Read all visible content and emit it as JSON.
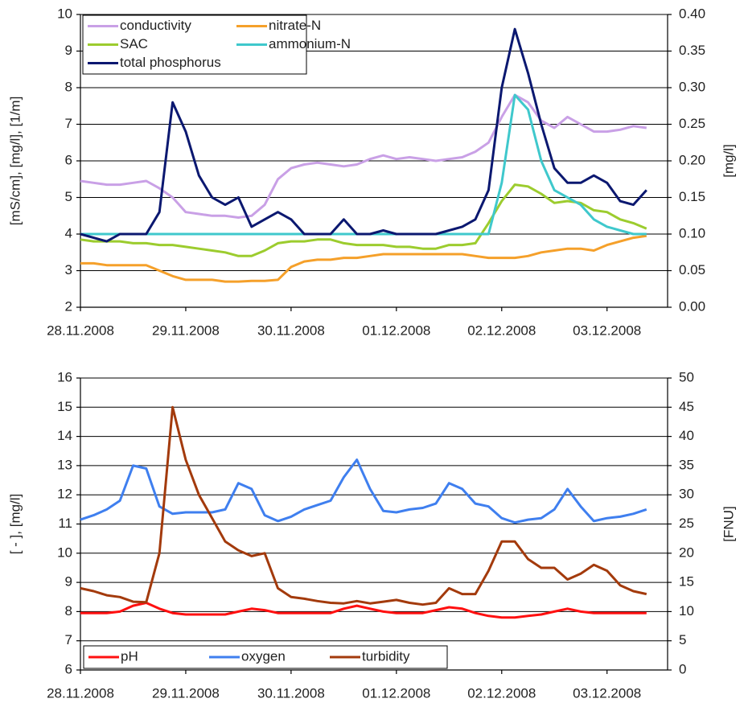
{
  "chart_data": [
    {
      "type": "line",
      "categories": [
        "28.11.2008",
        null,
        null,
        null,
        null,
        null,
        null,
        null,
        "29.11.2008",
        null,
        null,
        null,
        null,
        null,
        null,
        null,
        "30.11.2008",
        null,
        null,
        null,
        null,
        null,
        null,
        null,
        "01.12.2008",
        null,
        null,
        null,
        null,
        null,
        null,
        null,
        "02.12.2008",
        null,
        null,
        null,
        null,
        null,
        null,
        null,
        "03.12.2008",
        null,
        null,
        null
      ],
      "ylabel": "[mS/cm], [mg/l], [1/m]",
      "y2label": "[mg/l]",
      "ylim": [
        2,
        10
      ],
      "yticks": [
        2,
        3,
        4,
        5,
        6,
        7,
        8,
        9,
        10
      ],
      "y2lim": [
        0,
        0.4
      ],
      "y2ticks": [
        {
          "value": 0,
          "label": "0.00"
        },
        {
          "value": 0.05,
          "label": "0.05"
        },
        {
          "value": 0.1,
          "label": "0.10"
        },
        {
          "value": 0.15,
          "label": "0.15"
        },
        {
          "value": 0.2,
          "label": "0.20"
        },
        {
          "value": 0.25,
          "label": "0.25"
        },
        {
          "value": 0.3,
          "label": "0.30"
        },
        {
          "value": 0.35,
          "label": "0.35"
        },
        {
          "value": 0.4,
          "label": "0.40"
        }
      ],
      "grid": true,
      "legend": "upper left",
      "series": [
        {
          "name": "conductivity",
          "color": "#c9a0e6",
          "values": [
            5.45,
            5.4,
            5.35,
            5.35,
            5.4,
            5.45,
            5.25,
            5.0,
            4.6,
            4.55,
            4.5,
            4.5,
            4.45,
            4.5,
            4.8,
            5.5,
            5.8,
            5.9,
            5.95,
            5.9,
            5.85,
            5.9,
            6.05,
            6.15,
            6.05,
            6.1,
            6.05,
            6.0,
            6.05,
            6.1,
            6.25,
            6.5,
            7.2,
            7.8,
            7.6,
            7.1,
            6.9,
            7.2,
            7.0,
            6.8,
            6.8,
            6.85,
            6.95,
            6.9
          ]
        },
        {
          "name": "nitrate-N",
          "color": "#f5a02a",
          "values": [
            3.2,
            3.2,
            3.15,
            3.15,
            3.15,
            3.15,
            3.0,
            2.85,
            2.75,
            2.75,
            2.75,
            2.7,
            2.7,
            2.72,
            2.72,
            2.75,
            3.1,
            3.25,
            3.3,
            3.3,
            3.35,
            3.35,
            3.4,
            3.45,
            3.45,
            3.45,
            3.45,
            3.45,
            3.45,
            3.45,
            3.4,
            3.35,
            3.35,
            3.35,
            3.4,
            3.5,
            3.55,
            3.6,
            3.6,
            3.55,
            3.7,
            3.8,
            3.9,
            3.95
          ]
        },
        {
          "name": "SAC",
          "color": "#9ccc2e",
          "values": [
            3.85,
            3.8,
            3.8,
            3.8,
            3.75,
            3.75,
            3.7,
            3.7,
            3.65,
            3.6,
            3.55,
            3.5,
            3.4,
            3.4,
            3.55,
            3.75,
            3.8,
            3.8,
            3.85,
            3.85,
            3.75,
            3.7,
            3.7,
            3.7,
            3.65,
            3.65,
            3.6,
            3.6,
            3.7,
            3.7,
            3.75,
            4.3,
            4.9,
            5.35,
            5.3,
            5.1,
            4.85,
            4.9,
            4.85,
            4.65,
            4.6,
            4.4,
            4.3,
            4.15
          ]
        },
        {
          "name": "ammonium-N",
          "color": "#3fc8cc",
          "axis": "y2",
          "values": [
            0.1,
            0.1,
            0.1,
            0.1,
            0.1,
            0.1,
            0.1,
            0.1,
            0.1,
            0.1,
            0.1,
            0.1,
            0.1,
            0.1,
            0.1,
            0.1,
            0.1,
            0.1,
            0.1,
            0.1,
            0.1,
            0.1,
            0.1,
            0.1,
            0.1,
            0.1,
            0.1,
            0.1,
            0.1,
            0.1,
            0.1,
            0.1,
            0.17,
            0.29,
            0.27,
            0.2,
            0.16,
            0.15,
            0.14,
            0.12,
            0.11,
            0.105,
            0.1,
            0.1
          ]
        },
        {
          "name": "total phosphorus",
          "color": "#0b1870",
          "axis": "y2",
          "values": [
            0.1,
            0.095,
            0.09,
            0.1,
            0.1,
            0.1,
            0.13,
            0.28,
            0.24,
            0.18,
            0.15,
            0.14,
            0.15,
            0.11,
            0.12,
            0.13,
            0.12,
            0.1,
            0.1,
            0.1,
            0.12,
            0.1,
            0.1,
            0.105,
            0.1,
            0.1,
            0.1,
            0.1,
            0.105,
            0.11,
            0.12,
            0.16,
            0.3,
            0.38,
            0.32,
            0.25,
            0.19,
            0.17,
            0.17,
            0.18,
            0.17,
            0.145,
            0.14,
            0.16
          ]
        }
      ]
    },
    {
      "type": "line",
      "categories": [
        "28.11.2008",
        null,
        null,
        null,
        null,
        null,
        null,
        null,
        "29.11.2008",
        null,
        null,
        null,
        null,
        null,
        null,
        null,
        "30.11.2008",
        null,
        null,
        null,
        null,
        null,
        null,
        null,
        "01.12.2008",
        null,
        null,
        null,
        null,
        null,
        null,
        null,
        "02.12.2008",
        null,
        null,
        null,
        null,
        null,
        null,
        null,
        "03.12.2008",
        null,
        null,
        null
      ],
      "ylabel": "[ - ], [mg/l]",
      "y2label": "[FNU]",
      "ylim": [
        6,
        16
      ],
      "yticks": [
        6,
        7,
        8,
        9,
        10,
        11,
        12,
        13,
        14,
        15,
        16
      ],
      "y2lim": [
        0,
        50
      ],
      "y2ticks": [
        0,
        5,
        10,
        15,
        20,
        25,
        30,
        35,
        40,
        45,
        50
      ],
      "grid": true,
      "legend": "lower left",
      "series": [
        {
          "name": "pH",
          "color": "#ff1010",
          "values": [
            7.95,
            7.95,
            7.95,
            8.0,
            8.2,
            8.3,
            8.1,
            7.95,
            7.9,
            7.9,
            7.9,
            7.9,
            8.0,
            8.1,
            8.05,
            7.95,
            7.95,
            7.95,
            7.95,
            7.95,
            8.1,
            8.2,
            8.1,
            8.0,
            7.95,
            7.95,
            7.95,
            8.05,
            8.15,
            8.1,
            7.95,
            7.85,
            7.8,
            7.8,
            7.85,
            7.9,
            8.0,
            8.1,
            8.0,
            7.95,
            7.95,
            7.95,
            7.95,
            7.95
          ]
        },
        {
          "name": "oxygen",
          "color": "#3f7fef",
          "values": [
            11.15,
            11.3,
            11.5,
            11.8,
            13.0,
            12.9,
            11.6,
            11.35,
            11.4,
            11.4,
            11.4,
            11.5,
            12.4,
            12.2,
            11.3,
            11.1,
            11.25,
            11.5,
            11.65,
            11.8,
            12.6,
            13.2,
            12.2,
            11.45,
            11.4,
            11.5,
            11.55,
            11.7,
            12.4,
            12.2,
            11.7,
            11.6,
            11.2,
            11.05,
            11.15,
            11.2,
            11.5,
            12.2,
            11.6,
            11.1,
            11.2,
            11.25,
            11.35,
            11.5
          ]
        },
        {
          "name": "turbidity",
          "color": "#a33a0c",
          "axis": "y2",
          "values": [
            14,
            13.5,
            12.8,
            12.5,
            11.7,
            11.6,
            20,
            45,
            36,
            30,
            26,
            22,
            20.5,
            19.5,
            20,
            14,
            12.5,
            12.2,
            11.8,
            11.5,
            11.4,
            11.8,
            11.4,
            11.7,
            12,
            11.5,
            11.2,
            11.5,
            14,
            13,
            13,
            17,
            22,
            22,
            19,
            17.5,
            17.5,
            15.5,
            16.5,
            18,
            17,
            14.5,
            13.5,
            13
          ]
        }
      ]
    }
  ]
}
